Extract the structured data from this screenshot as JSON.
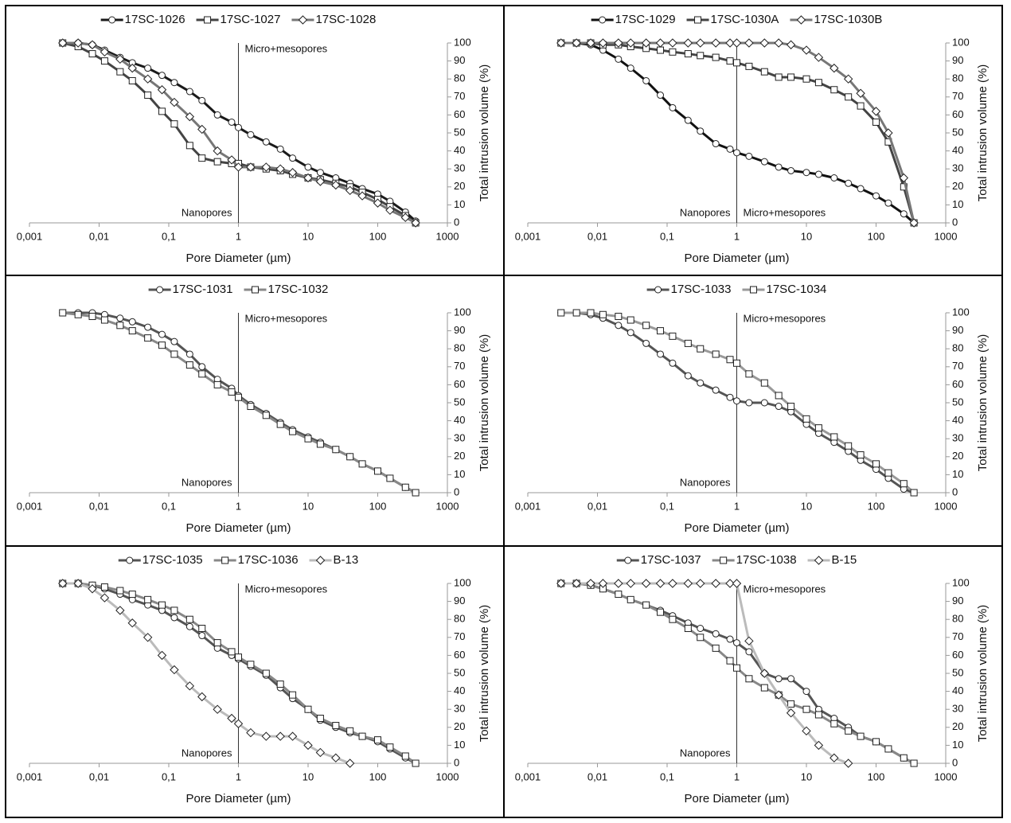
{
  "chart_data": [
    {
      "type": "line",
      "xscale": "log",
      "x": [
        0.003,
        0.005,
        0.008,
        0.012,
        0.02,
        0.03,
        0.05,
        0.08,
        0.12,
        0.2,
        0.3,
        0.5,
        0.8,
        1,
        1.5,
        2.5,
        4,
        6,
        10,
        15,
        25,
        40,
        60,
        100,
        150,
        250,
        350
      ],
      "xlim": [
        0.001,
        1000
      ],
      "xticks": [
        {
          "value": 0.001,
          "label": "0,001"
        },
        {
          "value": 0.01,
          "label": "0,01"
        },
        {
          "value": 0.1,
          "label": "0,1"
        },
        1,
        10,
        100,
        1000
      ],
      "ylim": [
        0,
        100
      ],
      "yticks": [
        0,
        10,
        20,
        30,
        40,
        50,
        60,
        70,
        80,
        90,
        100
      ],
      "xlabel": "Pore Diameter (µm)",
      "ylabel": "Total intrusion volume (%)",
      "divider_x": 1,
      "left_label": "Nanopores",
      "right_label": "Micro+mesopores",
      "series": [
        {
          "name": "17SC-1026",
          "color": "#1a1a1a",
          "marker": "circle",
          "values": [
            100,
            100,
            99,
            96,
            92,
            89,
            86,
            82,
            78,
            73,
            68,
            60,
            56,
            53,
            49,
            45,
            41,
            36,
            31,
            28,
            25,
            22,
            19,
            16,
            12,
            6,
            1
          ]
        },
        {
          "name": "17SC-1027",
          "color": "#444444",
          "marker": "square",
          "values": [
            100,
            98,
            94,
            90,
            84,
            79,
            71,
            62,
            55,
            43,
            36,
            34,
            33,
            33,
            31,
            30,
            29,
            27,
            25,
            24,
            22,
            20,
            17,
            13,
            9,
            4,
            0
          ]
        },
        {
          "name": "17SC-1028",
          "color": "#777777",
          "marker": "diamond",
          "values": [
            100,
            100,
            99,
            95,
            91,
            86,
            80,
            74,
            67,
            59,
            52,
            40,
            35,
            31,
            31,
            31,
            30,
            28,
            25,
            23,
            21,
            18,
            15,
            11,
            7,
            3,
            0
          ]
        }
      ]
    },
    {
      "type": "line",
      "xscale": "log",
      "x": [
        0.003,
        0.005,
        0.008,
        0.012,
        0.02,
        0.03,
        0.05,
        0.08,
        0.12,
        0.2,
        0.3,
        0.5,
        0.8,
        1,
        1.5,
        2.5,
        4,
        6,
        10,
        15,
        25,
        40,
        60,
        100,
        150,
        250,
        350
      ],
      "xlim": [
        0.001,
        1000
      ],
      "xticks": [
        {
          "value": 0.001,
          "label": "0,001"
        },
        {
          "value": 0.01,
          "label": "0,01"
        },
        {
          "value": 0.1,
          "label": "0,1"
        },
        1,
        10,
        100,
        1000
      ],
      "ylim": [
        0,
        100
      ],
      "yticks": [
        0,
        10,
        20,
        30,
        40,
        50,
        60,
        70,
        80,
        90,
        100
      ],
      "xlabel": "Pore Diameter (µm)",
      "ylabel": "Total intrusion volume (%)",
      "divider_x": 1,
      "left_label": "Nanopores",
      "right_label": "Micro+mesopores",
      "series": [
        {
          "name": "17SC-1029",
          "color": "#111111",
          "marker": "circle",
          "values": [
            100,
            100,
            99,
            96,
            91,
            86,
            79,
            71,
            64,
            57,
            51,
            44,
            41,
            39,
            37,
            34,
            31,
            29,
            28,
            27,
            25,
            22,
            19,
            15,
            11,
            5,
            0
          ]
        },
        {
          "name": "17SC-1030A",
          "color": "#444444",
          "marker": "square",
          "values": [
            100,
            100,
            100,
            99,
            99,
            98,
            97,
            96,
            95,
            94,
            93,
            92,
            90,
            89,
            87,
            84,
            81,
            81,
            80,
            78,
            74,
            70,
            65,
            56,
            45,
            20,
            0
          ]
        },
        {
          "name": "17SC-1030B",
          "color": "#777777",
          "marker": "diamond",
          "values": [
            100,
            100,
            100,
            100,
            100,
            100,
            100,
            100,
            100,
            100,
            100,
            100,
            100,
            100,
            100,
            100,
            100,
            99,
            96,
            92,
            86,
            80,
            72,
            62,
            50,
            25,
            0
          ]
        }
      ]
    },
    {
      "type": "line",
      "xscale": "log",
      "x": [
        0.003,
        0.005,
        0.008,
        0.012,
        0.02,
        0.03,
        0.05,
        0.08,
        0.12,
        0.2,
        0.3,
        0.5,
        0.8,
        1,
        1.5,
        2.5,
        4,
        6,
        10,
        15,
        25,
        40,
        60,
        100,
        150,
        250,
        350
      ],
      "xlim": [
        0.001,
        1000
      ],
      "xticks": [
        {
          "value": 0.001,
          "label": "0,001"
        },
        {
          "value": 0.01,
          "label": "0,01"
        },
        {
          "value": 0.1,
          "label": "0,1"
        },
        1,
        10,
        100,
        1000
      ],
      "ylim": [
        0,
        100
      ],
      "yticks": [
        0,
        10,
        20,
        30,
        40,
        50,
        60,
        70,
        80,
        90,
        100
      ],
      "xlabel": "Pore Diameter (µm)",
      "ylabel": "Total intrusion volume (%)",
      "divider_x": 1,
      "left_label": "Nanopores",
      "right_label": "Micro+mesopores",
      "series": [
        {
          "name": "17SC-1031",
          "color": "#555555",
          "marker": "circle",
          "values": [
            100,
            100,
            100,
            99,
            97,
            95,
            92,
            88,
            84,
            77,
            70,
            63,
            58,
            54,
            49,
            44,
            39,
            35,
            31,
            28,
            24,
            20,
            16,
            12,
            8,
            3,
            0
          ]
        },
        {
          "name": "17SC-1032",
          "color": "#888888",
          "marker": "square",
          "values": [
            100,
            99,
            98,
            96,
            93,
            90,
            86,
            82,
            77,
            71,
            66,
            60,
            56,
            53,
            48,
            43,
            38,
            34,
            30,
            27,
            24,
            20,
            16,
            12,
            8,
            3,
            0
          ]
        }
      ]
    },
    {
      "type": "line",
      "xscale": "log",
      "x": [
        0.003,
        0.005,
        0.008,
        0.012,
        0.02,
        0.03,
        0.05,
        0.08,
        0.12,
        0.2,
        0.3,
        0.5,
        0.8,
        1,
        1.5,
        2.5,
        4,
        6,
        10,
        15,
        25,
        40,
        60,
        100,
        150,
        250,
        350
      ],
      "xlim": [
        0.001,
        1000
      ],
      "xticks": [
        {
          "value": 0.001,
          "label": "0,001"
        },
        {
          "value": 0.01,
          "label": "0,01"
        },
        {
          "value": 0.1,
          "label": "0,1"
        },
        1,
        10,
        100,
        1000
      ],
      "ylim": [
        0,
        100
      ],
      "yticks": [
        0,
        10,
        20,
        30,
        40,
        50,
        60,
        70,
        80,
        90,
        100
      ],
      "xlabel": "Pore Diameter (µm)",
      "ylabel": "Total intrusion volume (%)",
      "divider_x": 1,
      "left_label": "Nanopores",
      "right_label": "Micro+mesopores",
      "series": [
        {
          "name": "17SC-1033",
          "color": "#555555",
          "marker": "circle",
          "values": [
            100,
            100,
            99,
            97,
            93,
            89,
            83,
            77,
            72,
            65,
            61,
            57,
            53,
            51,
            50,
            50,
            48,
            45,
            38,
            33,
            28,
            23,
            18,
            13,
            8,
            2,
            0
          ]
        },
        {
          "name": "17SC-1034",
          "color": "#999999",
          "marker": "square",
          "values": [
            100,
            100,
            100,
            99,
            98,
            96,
            93,
            90,
            87,
            83,
            80,
            77,
            74,
            72,
            66,
            61,
            54,
            48,
            41,
            36,
            31,
            26,
            21,
            16,
            11,
            5,
            0
          ]
        }
      ]
    },
    {
      "type": "line",
      "xscale": "log",
      "x": [
        0.003,
        0.005,
        0.008,
        0.012,
        0.02,
        0.03,
        0.05,
        0.08,
        0.12,
        0.2,
        0.3,
        0.5,
        0.8,
        1,
        1.5,
        2.5,
        4,
        6,
        10,
        15,
        25,
        40,
        60,
        100,
        150,
        250,
        350
      ],
      "xlim": [
        0.001,
        1000
      ],
      "xticks": [
        {
          "value": 0.001,
          "label": "0,001"
        },
        {
          "value": 0.01,
          "label": "0,01"
        },
        {
          "value": 0.1,
          "label": "0,1"
        },
        1,
        10,
        100,
        1000
      ],
      "ylim": [
        0,
        100
      ],
      "yticks": [
        0,
        10,
        20,
        30,
        40,
        50,
        60,
        70,
        80,
        90,
        100
      ],
      "xlabel": "Pore Diameter (µm)",
      "ylabel": "Total intrusion volume (%)",
      "divider_x": 1,
      "left_label": "Nanopores",
      "right_label": "Micro+mesopores",
      "series": [
        {
          "name": "17SC-1035",
          "color": "#555555",
          "marker": "circle",
          "values": [
            100,
            100,
            99,
            97,
            94,
            91,
            88,
            85,
            81,
            76,
            71,
            64,
            60,
            58,
            54,
            49,
            42,
            36,
            30,
            24,
            20,
            17,
            15,
            12,
            8,
            3,
            0
          ]
        },
        {
          "name": "17SC-1036",
          "color": "#888888",
          "marker": "square",
          "values": [
            100,
            100,
            99,
            98,
            96,
            94,
            91,
            88,
            85,
            80,
            75,
            67,
            62,
            59,
            55,
            50,
            44,
            38,
            30,
            25,
            21,
            18,
            15,
            13,
            9,
            4,
            0
          ]
        },
        {
          "name": "B-13",
          "color": "#bbbbbb",
          "marker": "diamond",
          "values": [
            100,
            100,
            97,
            92,
            85,
            78,
            70,
            60,
            52,
            43,
            37,
            30,
            25,
            22,
            17,
            15,
            15,
            15,
            10,
            6,
            3,
            0,
            null,
            null,
            null,
            null,
            null
          ]
        }
      ]
    },
    {
      "type": "line",
      "xscale": "log",
      "x": [
        0.003,
        0.005,
        0.008,
        0.012,
        0.02,
        0.03,
        0.05,
        0.08,
        0.12,
        0.2,
        0.3,
        0.5,
        0.8,
        1,
        1.5,
        2.5,
        4,
        6,
        10,
        15,
        25,
        40,
        60,
        100,
        150,
        250,
        350
      ],
      "xlim": [
        0.001,
        1000
      ],
      "xticks": [
        {
          "value": 0.001,
          "label": "0,001"
        },
        {
          "value": 0.01,
          "label": "0,01"
        },
        {
          "value": 0.1,
          "label": "0,1"
        },
        1,
        10,
        100,
        1000
      ],
      "ylim": [
        0,
        100
      ],
      "yticks": [
        0,
        10,
        20,
        30,
        40,
        50,
        60,
        70,
        80,
        90,
        100
      ],
      "xlabel": "Pore Diameter (µm)",
      "ylabel": "Total intrusion volume (%)",
      "divider_x": 1,
      "left_label": "Nanopores",
      "right_label": "Micro+mesopores",
      "series": [
        {
          "name": "17SC-1037",
          "color": "#555555",
          "marker": "circle",
          "values": [
            100,
            100,
            99,
            97,
            94,
            91,
            88,
            85,
            82,
            78,
            75,
            72,
            69,
            67,
            62,
            50,
            47,
            47,
            40,
            30,
            25,
            20,
            15,
            12,
            8,
            3,
            0
          ]
        },
        {
          "name": "17SC-1038",
          "color": "#888888",
          "marker": "square",
          "values": [
            100,
            100,
            99,
            97,
            94,
            91,
            88,
            84,
            80,
            75,
            70,
            64,
            57,
            53,
            47,
            42,
            38,
            33,
            30,
            27,
            22,
            18,
            15,
            12,
            8,
            3,
            0
          ]
        },
        {
          "name": "B-15",
          "color": "#bbbbbb",
          "marker": "diamond",
          "values": [
            100,
            100,
            100,
            100,
            100,
            100,
            100,
            100,
            100,
            100,
            100,
            100,
            100,
            100,
            68,
            50,
            38,
            28,
            18,
            10,
            3,
            0,
            null,
            null,
            null,
            null,
            null
          ]
        }
      ]
    }
  ]
}
